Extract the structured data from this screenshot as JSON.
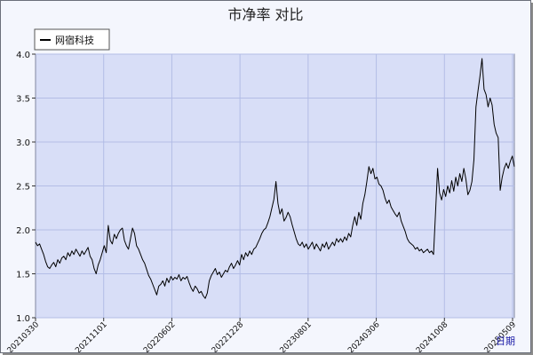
{
  "chart_data": {
    "type": "line",
    "title": "市净率 对比",
    "xlabel": "日期",
    "ylabel": "",
    "ylim": [
      1.0,
      4.0
    ],
    "yticks": [
      "1.0",
      "1.5",
      "2.0",
      "2.5",
      "3.0",
      "3.5",
      "4.0"
    ],
    "xticks": [
      "20210330",
      "20211101",
      "20220602",
      "20221228",
      "20230801",
      "20240306",
      "20241008",
      "20250509"
    ],
    "grid": true,
    "legend": "top-left",
    "series": [
      {
        "name": "网宿科技",
        "color": "#000000",
        "values": [
          1.86,
          1.82,
          1.84,
          1.78,
          1.72,
          1.64,
          1.58,
          1.56,
          1.6,
          1.63,
          1.58,
          1.66,
          1.62,
          1.68,
          1.7,
          1.66,
          1.74,
          1.7,
          1.76,
          1.72,
          1.78,
          1.74,
          1.7,
          1.76,
          1.72,
          1.76,
          1.8,
          1.7,
          1.66,
          1.56,
          1.5,
          1.6,
          1.66,
          1.74,
          1.82,
          1.74,
          2.05,
          1.88,
          1.84,
          1.95,
          1.9,
          1.96,
          2.0,
          2.02,
          1.88,
          1.82,
          1.78,
          1.9,
          2.02,
          1.96,
          1.82,
          1.78,
          1.72,
          1.66,
          1.62,
          1.55,
          1.48,
          1.44,
          1.38,
          1.32,
          1.26,
          1.36,
          1.38,
          1.42,
          1.36,
          1.45,
          1.4,
          1.47,
          1.43,
          1.46,
          1.44,
          1.49,
          1.42,
          1.46,
          1.44,
          1.47,
          1.4,
          1.34,
          1.3,
          1.36,
          1.33,
          1.28,
          1.3,
          1.25,
          1.22,
          1.28,
          1.42,
          1.48,
          1.52,
          1.56,
          1.49,
          1.52,
          1.46,
          1.5,
          1.54,
          1.52,
          1.58,
          1.62,
          1.56,
          1.6,
          1.65,
          1.6,
          1.72,
          1.66,
          1.74,
          1.7,
          1.76,
          1.72,
          1.78,
          1.8,
          1.85,
          1.9,
          1.96,
          2.0,
          2.02,
          2.08,
          2.15,
          2.25,
          2.35,
          2.55,
          2.3,
          2.18,
          2.24,
          2.1,
          2.14,
          2.2,
          2.15,
          2.06,
          1.98,
          1.9,
          1.84,
          1.82,
          1.86,
          1.8,
          1.84,
          1.78,
          1.82,
          1.86,
          1.78,
          1.84,
          1.8,
          1.76,
          1.84,
          1.8,
          1.86,
          1.78,
          1.82,
          1.86,
          1.82,
          1.9,
          1.86,
          1.9,
          1.86,
          1.92,
          1.88,
          1.96,
          1.92,
          2.05,
          2.15,
          2.05,
          2.2,
          2.12,
          2.3,
          2.4,
          2.55,
          2.72,
          2.64,
          2.7,
          2.58,
          2.6,
          2.52,
          2.5,
          2.45,
          2.36,
          2.3,
          2.34,
          2.26,
          2.22,
          2.18,
          2.15,
          2.2,
          2.1,
          2.04,
          1.98,
          1.9,
          1.86,
          1.84,
          1.82,
          1.78,
          1.8,
          1.76,
          1.78,
          1.74,
          1.76,
          1.78,
          1.74,
          1.76,
          1.72,
          2.2,
          2.7,
          2.42,
          2.34,
          2.46,
          2.38,
          2.5,
          2.42,
          2.56,
          2.44,
          2.6,
          2.5,
          2.64,
          2.55,
          2.7,
          2.58,
          2.4,
          2.45,
          2.55,
          2.8,
          3.4,
          3.58,
          3.75,
          3.95,
          3.6,
          3.54,
          3.4,
          3.5,
          3.42,
          3.2,
          3.1,
          3.05,
          2.45,
          2.6,
          2.7,
          2.76,
          2.7,
          2.78,
          2.84,
          2.72
        ]
      }
    ]
  }
}
